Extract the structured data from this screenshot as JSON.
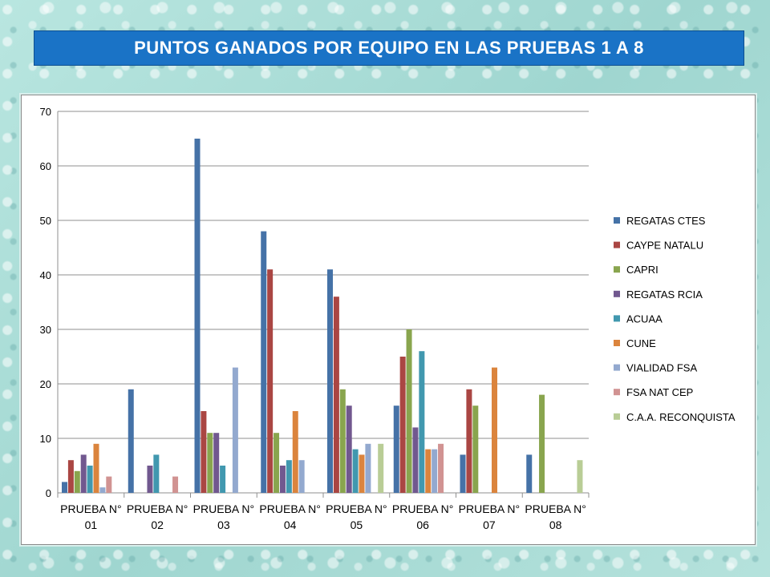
{
  "title": "PUNTOS GANADOS POR EQUIPO EN LAS PRUEBAS 1 A 8",
  "chart_data": {
    "type": "bar",
    "title": "",
    "xlabel": "",
    "ylabel": "",
    "ylim": [
      0,
      70
    ],
    "yticks": [
      0,
      10,
      20,
      30,
      40,
      50,
      60,
      70
    ],
    "grid": true,
    "legend_position": "right",
    "categories": [
      [
        "PRUEBA N°",
        "01"
      ],
      [
        "PRUEBA N°",
        "02"
      ],
      [
        "PRUEBA N°",
        "03"
      ],
      [
        "PRUEBA N°",
        "04"
      ],
      [
        "PRUEBA N°",
        "05"
      ],
      [
        "PRUEBA N°",
        "06"
      ],
      [
        "PRUEBA N°",
        "07"
      ],
      [
        "PRUEBA N°",
        "08"
      ]
    ],
    "series": [
      {
        "name": "REGATAS CTES",
        "color": "#4572a7",
        "values": [
          2,
          19,
          65,
          48,
          41,
          16,
          7,
          7
        ]
      },
      {
        "name": "CAYPE NATALU",
        "color": "#aa4643",
        "values": [
          6,
          0,
          15,
          41,
          36,
          25,
          19,
          0
        ]
      },
      {
        "name": "CAPRI",
        "color": "#89a54e",
        "values": [
          4,
          0,
          11,
          11,
          19,
          30,
          16,
          18
        ]
      },
      {
        "name": "REGATAS RCIA",
        "color": "#71588f",
        "values": [
          7,
          5,
          11,
          5,
          16,
          12,
          0,
          0
        ]
      },
      {
        "name": "ACUAA",
        "color": "#4198af",
        "values": [
          5,
          7,
          5,
          6,
          8,
          26,
          0,
          0
        ]
      },
      {
        "name": "CUNE",
        "color": "#db843d",
        "values": [
          9,
          0,
          0,
          15,
          7,
          8,
          23,
          0
        ]
      },
      {
        "name": "VIALIDAD FSA",
        "color": "#93a9cf",
        "values": [
          1,
          0,
          23,
          6,
          9,
          8,
          0,
          0
        ]
      },
      {
        "name": "FSA NAT CEP",
        "color": "#d19392",
        "values": [
          3,
          3,
          0,
          0,
          0,
          9,
          0,
          0
        ]
      },
      {
        "name": "C.A.A. RECONQUISTA",
        "color": "#b9cd96",
        "values": [
          0,
          0,
          0,
          0,
          9,
          0,
          0,
          6
        ]
      }
    ]
  }
}
